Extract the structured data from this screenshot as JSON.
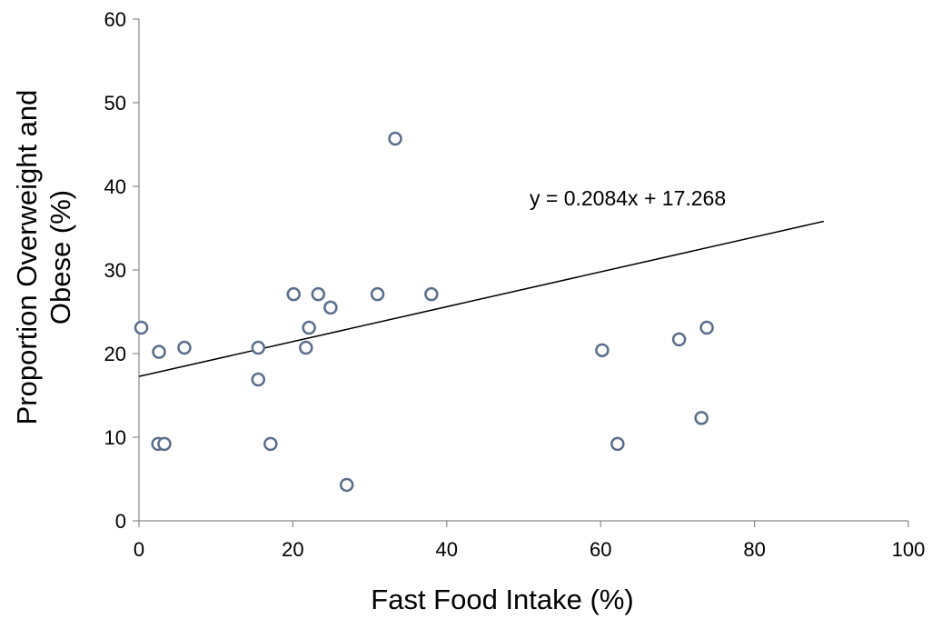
{
  "chart_data": {
    "type": "scatter",
    "title": "",
    "xlabel": "Fast Food Intake (%)",
    "ylabel_line1": "Proportion Overweight and",
    "ylabel_line2": "Obese (%)",
    "xlim": [
      0,
      100
    ],
    "ylim": [
      0,
      60
    ],
    "x_ticks": [
      0,
      20,
      40,
      60,
      80,
      100
    ],
    "y_ticks": [
      0,
      10,
      20,
      30,
      40,
      50,
      60
    ],
    "grid": false,
    "legend": "none",
    "series": [
      {
        "points": [
          {
            "x": 0.3,
            "y": 23.1
          },
          {
            "x": 2.6,
            "y": 20.2
          },
          {
            "x": 2.5,
            "y": 9.2
          },
          {
            "x": 3.3,
            "y": 9.2
          },
          {
            "x": 5.9,
            "y": 20.7
          },
          {
            "x": 15.5,
            "y": 20.7
          },
          {
            "x": 15.5,
            "y": 16.9
          },
          {
            "x": 17.1,
            "y": 9.2
          },
          {
            "x": 20.1,
            "y": 27.1
          },
          {
            "x": 21.7,
            "y": 20.7
          },
          {
            "x": 22.1,
            "y": 23.1
          },
          {
            "x": 23.3,
            "y": 27.1
          },
          {
            "x": 24.9,
            "y": 25.5
          },
          {
            "x": 27.0,
            "y": 4.3
          },
          {
            "x": 31.0,
            "y": 27.1
          },
          {
            "x": 33.3,
            "y": 45.7
          },
          {
            "x": 38.0,
            "y": 27.1
          },
          {
            "x": 60.2,
            "y": 20.4
          },
          {
            "x": 62.2,
            "y": 9.2
          },
          {
            "x": 70.2,
            "y": 21.7
          },
          {
            "x": 73.1,
            "y": 12.3
          },
          {
            "x": 73.8,
            "y": 23.1
          }
        ],
        "color": "#5a6e8c"
      }
    ],
    "trendline": {
      "slope": 0.2084,
      "intercept": 17.268,
      "x_range": [
        0,
        89
      ],
      "equation_label": "y = 0.2084x + 17.268"
    }
  }
}
